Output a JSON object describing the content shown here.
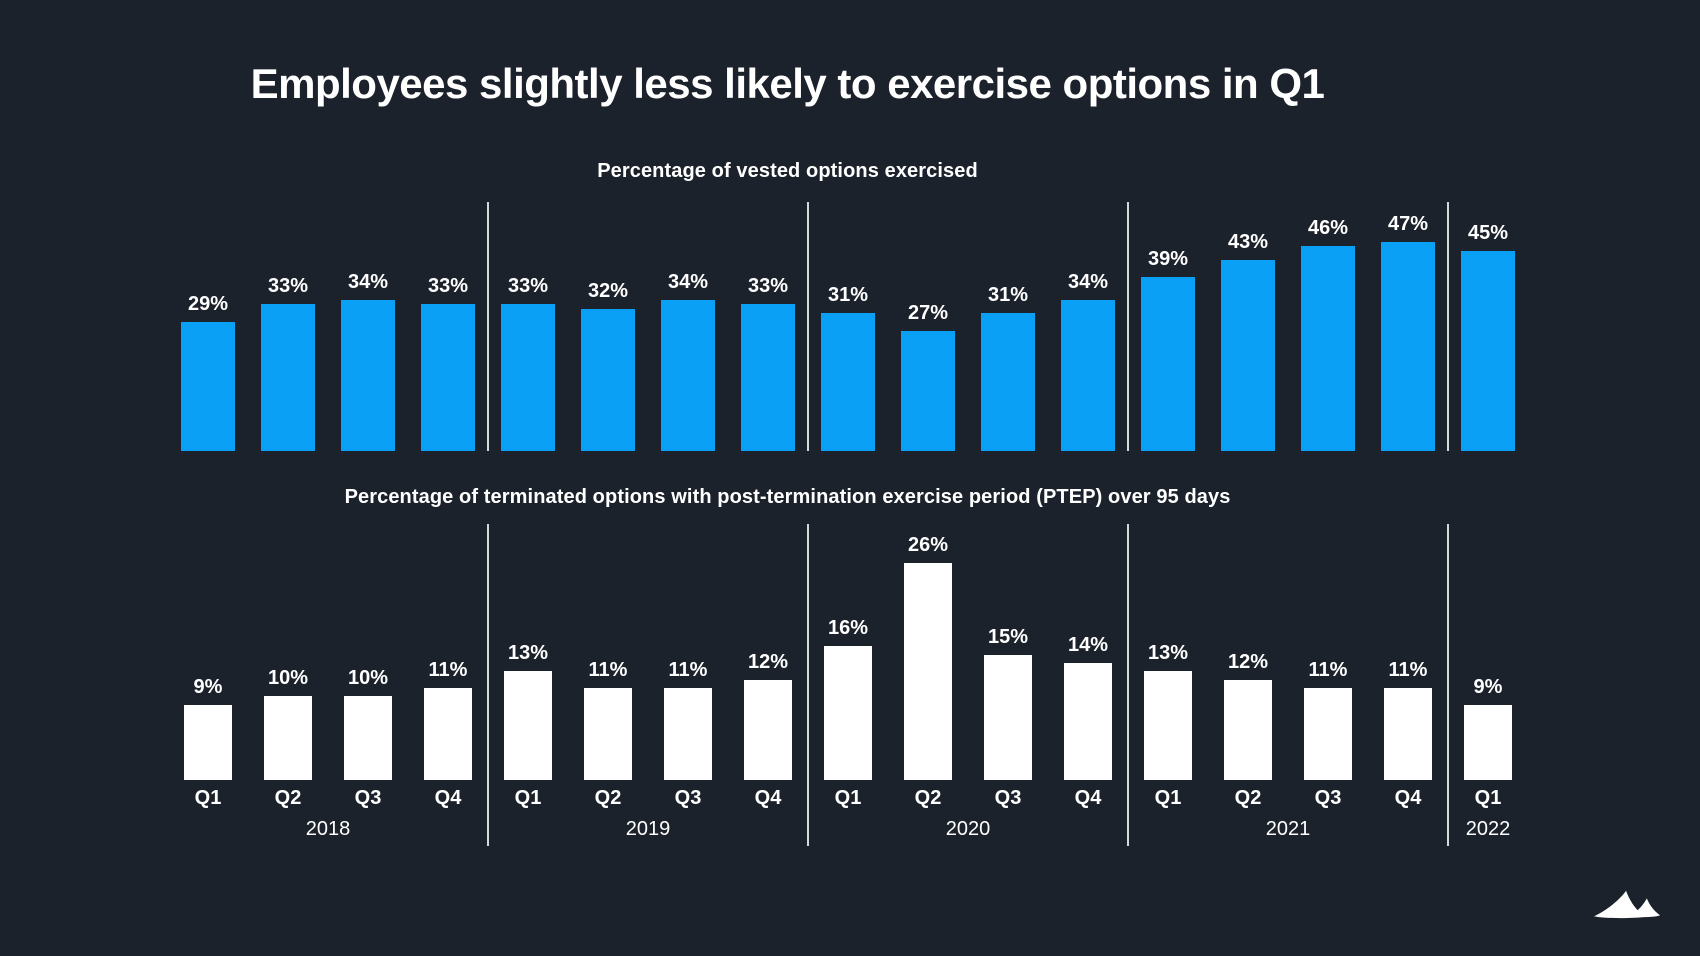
{
  "page": {
    "title": "Employees slightly less likely to exercise options in Q1",
    "background_color": "#1C222B",
    "accent_blue": "#0AA0F5",
    "bar_white": "#FFFFFF",
    "divider_color": "#CFD2D6",
    "logo_icon": "dunes-logo"
  },
  "axis": {
    "quarter_labels": [
      "Q1",
      "Q2",
      "Q3",
      "Q4",
      "Q1",
      "Q2",
      "Q3",
      "Q4",
      "Q1",
      "Q2",
      "Q3",
      "Q4",
      "Q1",
      "Q2",
      "Q3",
      "Q4",
      "Q1"
    ],
    "year_labels": [
      "2018",
      "2019",
      "2020",
      "2021",
      "2022"
    ]
  },
  "chart_data": [
    {
      "type": "bar",
      "title": "Percentage of vested options exercised",
      "categories": [
        "2018 Q1",
        "2018 Q2",
        "2018 Q3",
        "2018 Q4",
        "2019 Q1",
        "2019 Q2",
        "2019 Q3",
        "2019 Q4",
        "2020 Q1",
        "2020 Q2",
        "2020 Q3",
        "2020 Q4",
        "2021 Q1",
        "2021 Q2",
        "2021 Q3",
        "2021 Q4",
        "2022 Q1"
      ],
      "values": [
        29,
        33,
        34,
        33,
        33,
        32,
        34,
        33,
        31,
        27,
        31,
        34,
        39,
        43,
        46,
        47,
        45
      ],
      "data_labels": [
        "29%",
        "33%",
        "34%",
        "33%",
        "33%",
        "32%",
        "34%",
        "33%",
        "31%",
        "27%",
        "31%",
        "34%",
        "39%",
        "43%",
        "46%",
        "47%",
        "45%"
      ],
      "unit": "%",
      "bar_color": "#0AA0F5",
      "ylim": [
        0,
        50
      ],
      "grid": false,
      "legend": false,
      "group_dividers": "between years",
      "xlabel": "",
      "ylabel": ""
    },
    {
      "type": "bar",
      "title": "Percentage of terminated options with post-termination exercise period (PTEP) over 95 days",
      "categories": [
        "2018 Q1",
        "2018 Q2",
        "2018 Q3",
        "2018 Q4",
        "2019 Q1",
        "2019 Q2",
        "2019 Q3",
        "2019 Q4",
        "2020 Q1",
        "2020 Q2",
        "2020 Q3",
        "2020 Q4",
        "2021 Q1",
        "2021 Q2",
        "2021 Q3",
        "2021 Q4",
        "2022 Q1"
      ],
      "values": [
        9,
        10,
        10,
        11,
        13,
        11,
        11,
        12,
        16,
        26,
        15,
        14,
        13,
        12,
        11,
        11,
        9
      ],
      "data_labels": [
        "9%",
        "10%",
        "10%",
        "11%",
        "13%",
        "11%",
        "11%",
        "12%",
        "16%",
        "26%",
        "15%",
        "14%",
        "13%",
        "12%",
        "11%",
        "11%",
        "9%"
      ],
      "unit": "%",
      "bar_color": "#FFFFFF",
      "ylim": [
        0,
        30
      ],
      "grid": false,
      "legend": false,
      "group_dividers": "between years",
      "xlabel": "",
      "ylabel": ""
    }
  ]
}
